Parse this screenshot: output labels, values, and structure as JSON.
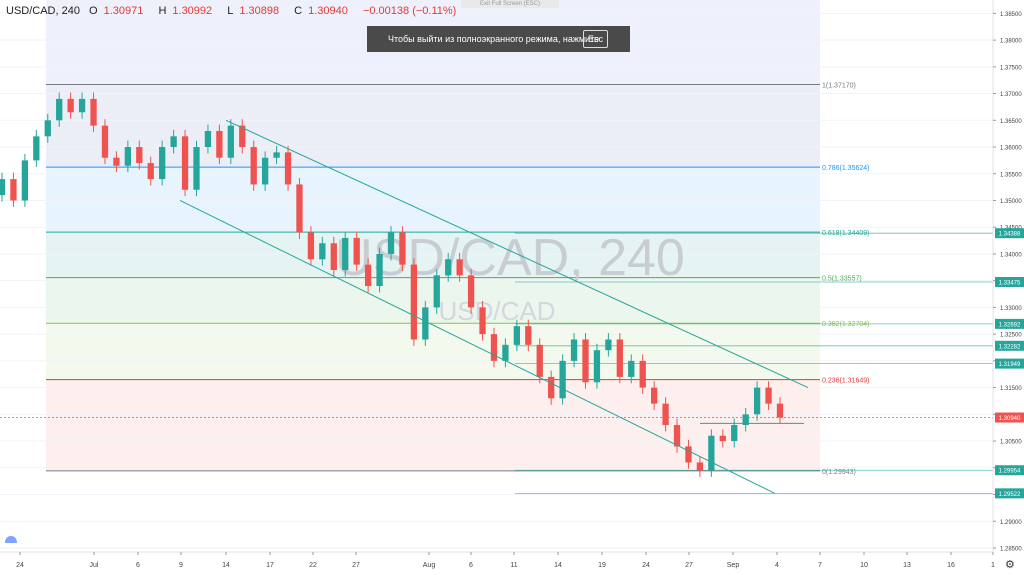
{
  "header": {
    "symbol": "USD/CAD, 240",
    "open_label": "O",
    "open_value": "1.30971",
    "high_label": "H",
    "high_value": "1.30992",
    "low_label": "L",
    "low_value": "1.30898",
    "close_label": "C",
    "close_value": "1.30940",
    "change": "−0.00138 (−0.11%)"
  },
  "exit_tab": "Exit Full Screen (ESC)",
  "fullscreen_toast": {
    "message": "Чтобы выйти из полноэкранного режима, нажмите",
    "key": "Esc"
  },
  "watermark": {
    "line1": "USD/CAD, 240",
    "line2": "USD/CAD"
  },
  "colors": {
    "up": "#26a69a",
    "down": "#ef5350",
    "channel": "#26a69a",
    "last_price": "#ef5350",
    "axis_text": "#444444",
    "grid": "#f0f3fa"
  },
  "chart_data": {
    "type": "candlestick",
    "symbol": "USD/CAD",
    "timeframe": "240",
    "x_ticks": [
      "24",
      "Jul",
      "6",
      "9",
      "14",
      "17",
      "22",
      "27",
      "Aug",
      "6",
      "11",
      "14",
      "19",
      "24",
      "27",
      "Sep",
      "4",
      "7",
      "10",
      "13",
      "16",
      "1"
    ],
    "y_ticks": [
      "1.38500",
      "1.38000",
      "1.37500",
      "1.37000",
      "1.36500",
      "1.36000",
      "1.35500",
      "1.35000",
      "1.34500",
      "1.34000",
      "1.33500",
      "1.33000",
      "1.32500",
      "1.32000",
      "1.31500",
      "1.31000",
      "1.30500",
      "1.30000",
      "1.29500",
      "1.29000",
      "1.28500"
    ],
    "ylim": [
      1.2835,
      1.3875
    ],
    "price_scale_labels": [
      "1.34388",
      "1.33475",
      "1.32692",
      "1.32282",
      "1.31949",
      "1.30940",
      "1.29954",
      "1.29522"
    ],
    "last_price": "1.30940",
    "fibonacci": [
      {
        "level": "1",
        "price": 1.3717,
        "label": "1(1.37170)",
        "color": "#787b86"
      },
      {
        "level": "0.786",
        "price": 1.35624,
        "label": "0.786(1.35624)",
        "color": "#2196f3"
      },
      {
        "level": "0.618",
        "price": 1.34409,
        "label": "0.618(1.34409)",
        "color": "#26a69a"
      },
      {
        "level": "0.5",
        "price": 1.33557,
        "label": "0.5(1.33557)",
        "color": "#4caf50"
      },
      {
        "level": "0.382",
        "price": 1.32704,
        "label": "0.382(1.32704)",
        "color": "#8bc34a"
      },
      {
        "level": "0.236",
        "price": 1.31649,
        "label": "0.236(1.31649)",
        "color": "#e53935"
      },
      {
        "level": "0",
        "price": 1.29943,
        "label": "0(1.29943)",
        "color": "#787b86"
      }
    ],
    "horizontal_lines": [
      1.34388,
      1.33475,
      1.32692,
      1.32282,
      1.31949,
      1.29954,
      1.29522
    ],
    "channel": {
      "upper": {
        "from": [
          14,
          1.365
        ],
        "to": [
          4.6,
          1.315
        ]
      },
      "lower": {
        "from": [
          9,
          1.35
        ],
        "to": [
          3.9,
          1.2952
        ]
      }
    },
    "series": [
      {
        "x": 0,
        "o": 1.351,
        "c": 1.354
      },
      {
        "x": 1,
        "o": 1.354,
        "c": 1.35
      },
      {
        "x": 2,
        "o": 1.35,
        "c": 1.3575
      },
      {
        "x": 3,
        "o": 1.3575,
        "c": 1.362
      },
      {
        "x": 4,
        "o": 1.362,
        "c": 1.365
      },
      {
        "x": 5,
        "o": 1.365,
        "c": 1.369
      },
      {
        "x": 6,
        "o": 1.369,
        "c": 1.3665
      },
      {
        "x": 7,
        "o": 1.3665,
        "c": 1.369
      },
      {
        "x": 8,
        "o": 1.369,
        "c": 1.364
      },
      {
        "x": 9,
        "o": 1.364,
        "c": 1.358
      },
      {
        "x": 10,
        "o": 1.358,
        "c": 1.3565
      },
      {
        "x": 11,
        "o": 1.3565,
        "c": 1.36
      },
      {
        "x": 12,
        "o": 1.36,
        "c": 1.357
      },
      {
        "x": 13,
        "o": 1.357,
        "c": 1.354
      },
      {
        "x": 14,
        "o": 1.354,
        "c": 1.36
      },
      {
        "x": 15,
        "o": 1.36,
        "c": 1.362
      },
      {
        "x": 16,
        "o": 1.362,
        "c": 1.352
      },
      {
        "x": 17,
        "o": 1.352,
        "c": 1.36
      },
      {
        "x": 18,
        "o": 1.36,
        "c": 1.363
      },
      {
        "x": 19,
        "o": 1.363,
        "c": 1.358
      },
      {
        "x": 20,
        "o": 1.358,
        "c": 1.364
      },
      {
        "x": 21,
        "o": 1.364,
        "c": 1.36
      },
      {
        "x": 22,
        "o": 1.36,
        "c": 1.353
      },
      {
        "x": 23,
        "o": 1.353,
        "c": 1.358
      },
      {
        "x": 24,
        "o": 1.358,
        "c": 1.359
      },
      {
        "x": 25,
        "o": 1.359,
        "c": 1.353
      },
      {
        "x": 26,
        "o": 1.353,
        "c": 1.344
      },
      {
        "x": 27,
        "o": 1.344,
        "c": 1.339
      },
      {
        "x": 28,
        "o": 1.339,
        "c": 1.342
      },
      {
        "x": 29,
        "o": 1.342,
        "c": 1.337
      },
      {
        "x": 30,
        "o": 1.337,
        "c": 1.343
      },
      {
        "x": 31,
        "o": 1.343,
        "c": 1.338
      },
      {
        "x": 32,
        "o": 1.338,
        "c": 1.334
      },
      {
        "x": 33,
        "o": 1.334,
        "c": 1.34
      },
      {
        "x": 34,
        "o": 1.34,
        "c": 1.344
      },
      {
        "x": 35,
        "o": 1.344,
        "c": 1.338
      },
      {
        "x": 36,
        "o": 1.338,
        "c": 1.324
      },
      {
        "x": 37,
        "o": 1.324,
        "c": 1.33
      },
      {
        "x": 38,
        "o": 1.33,
        "c": 1.336
      },
      {
        "x": 39,
        "o": 1.336,
        "c": 1.339
      },
      {
        "x": 40,
        "o": 1.339,
        "c": 1.336
      },
      {
        "x": 41,
        "o": 1.336,
        "c": 1.33
      },
      {
        "x": 42,
        "o": 1.33,
        "c": 1.325
      },
      {
        "x": 43,
        "o": 1.325,
        "c": 1.32
      },
      {
        "x": 44,
        "o": 1.32,
        "c": 1.323
      },
      {
        "x": 45,
        "o": 1.323,
        "c": 1.3265
      },
      {
        "x": 46,
        "o": 1.3265,
        "c": 1.323
      },
      {
        "x": 47,
        "o": 1.323,
        "c": 1.317
      },
      {
        "x": 48,
        "o": 1.317,
        "c": 1.313
      },
      {
        "x": 49,
        "o": 1.313,
        "c": 1.32
      },
      {
        "x": 50,
        "o": 1.32,
        "c": 1.324
      },
      {
        "x": 51,
        "o": 1.324,
        "c": 1.316
      },
      {
        "x": 52,
        "o": 1.316,
        "c": 1.322
      },
      {
        "x": 53,
        "o": 1.322,
        "c": 1.324
      },
      {
        "x": 54,
        "o": 1.324,
        "c": 1.317
      },
      {
        "x": 55,
        "o": 1.317,
        "c": 1.32
      },
      {
        "x": 56,
        "o": 1.32,
        "c": 1.315
      },
      {
        "x": 57,
        "o": 1.315,
        "c": 1.312
      },
      {
        "x": 58,
        "o": 1.312,
        "c": 1.308
      },
      {
        "x": 59,
        "o": 1.308,
        "c": 1.304
      },
      {
        "x": 60,
        "o": 1.304,
        "c": 1.301
      },
      {
        "x": 61,
        "o": 1.301,
        "c": 1.2995
      },
      {
        "x": 62,
        "o": 1.2995,
        "c": 1.306
      },
      {
        "x": 63,
        "o": 1.306,
        "c": 1.305
      },
      {
        "x": 64,
        "o": 1.305,
        "c": 1.308
      },
      {
        "x": 65,
        "o": 1.308,
        "c": 1.31
      },
      {
        "x": 66,
        "o": 1.31,
        "c": 1.315
      },
      {
        "x": 67,
        "o": 1.315,
        "c": 1.312
      },
      {
        "x": 68,
        "o": 1.312,
        "c": 1.3094
      }
    ]
  }
}
